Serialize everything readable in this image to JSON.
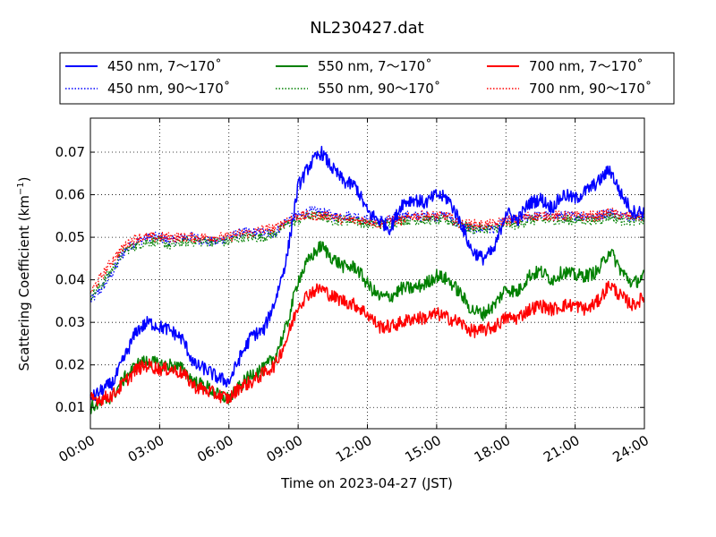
{
  "chart_data": {
    "type": "line",
    "title": "NL230427.dat",
    "xlabel": "Time on 2023-04-27 (JST)",
    "ylabel_main": "Scattering Coefficient (km",
    "ylabel_sup": "−1",
    "ylabel_close": ")",
    "x_unit": "hours",
    "xlim": [
      0,
      24
    ],
    "ylim": [
      0.005,
      0.078
    ],
    "x_ticks": [
      {
        "value": 0,
        "label": "00:00"
      },
      {
        "value": 3,
        "label": "03:00"
      },
      {
        "value": 6,
        "label": "06:00"
      },
      {
        "value": 9,
        "label": "09:00"
      },
      {
        "value": 12,
        "label": "12:00"
      },
      {
        "value": 15,
        "label": "15:00"
      },
      {
        "value": 18,
        "label": "18:00"
      },
      {
        "value": 21,
        "label": "21:00"
      },
      {
        "value": 24,
        "label": "24:00"
      }
    ],
    "y_ticks": [
      {
        "value": 0.01,
        "label": "0.01"
      },
      {
        "value": 0.02,
        "label": "0.02"
      },
      {
        "value": 0.03,
        "label": "0.03"
      },
      {
        "value": 0.04,
        "label": "0.04"
      },
      {
        "value": 0.05,
        "label": "0.05"
      },
      {
        "value": 0.06,
        "label": "0.06"
      },
      {
        "value": 0.07,
        "label": "0.07"
      }
    ],
    "grid": true,
    "legend_placement": "top",
    "series": [
      {
        "name": "450 nm, 7～170˚",
        "color": "#0000ff",
        "style": "solid",
        "x": [
          0,
          0.5,
          1,
          1.5,
          2,
          2.5,
          3,
          3.5,
          4,
          4.5,
          5,
          5.5,
          6,
          6.5,
          7,
          7.5,
          8,
          8.5,
          9,
          9.5,
          10,
          10.5,
          11,
          11.5,
          12,
          12.5,
          13,
          13.5,
          14,
          14.5,
          15,
          15.5,
          16,
          16.5,
          17,
          17.5,
          18,
          18.5,
          19,
          19.5,
          20,
          20.5,
          21,
          21.5,
          22,
          22.5,
          23,
          23.5,
          24
        ],
        "y": [
          0.012,
          0.014,
          0.016,
          0.022,
          0.028,
          0.03,
          0.029,
          0.028,
          0.026,
          0.02,
          0.019,
          0.017,
          0.016,
          0.022,
          0.027,
          0.028,
          0.035,
          0.045,
          0.062,
          0.067,
          0.07,
          0.066,
          0.063,
          0.062,
          0.056,
          0.054,
          0.052,
          0.058,
          0.059,
          0.058,
          0.06,
          0.059,
          0.054,
          0.047,
          0.045,
          0.047,
          0.056,
          0.054,
          0.058,
          0.059,
          0.057,
          0.06,
          0.059,
          0.061,
          0.063,
          0.066,
          0.06,
          0.056,
          0.056
        ]
      },
      {
        "name": "450 nm, 90～170˚",
        "color": "#0000ff",
        "style": "dotted",
        "x": [
          0,
          0.5,
          1,
          1.5,
          2,
          2.5,
          3,
          3.5,
          4,
          4.5,
          5,
          5.5,
          6,
          6.5,
          7,
          7.5,
          8,
          8.5,
          9,
          9.5,
          10,
          10.5,
          11,
          11.5,
          12,
          12.5,
          13,
          13.5,
          14,
          14.5,
          15,
          15.5,
          16,
          16.5,
          17,
          17.5,
          18,
          18.5,
          19,
          19.5,
          20,
          20.5,
          21,
          21.5,
          22,
          22.5,
          23,
          23.5,
          24
        ],
        "y": [
          0.035,
          0.038,
          0.042,
          0.047,
          0.049,
          0.05,
          0.05,
          0.049,
          0.05,
          0.05,
          0.049,
          0.049,
          0.05,
          0.051,
          0.051,
          0.051,
          0.051,
          0.054,
          0.055,
          0.056,
          0.056,
          0.055,
          0.055,
          0.055,
          0.054,
          0.054,
          0.054,
          0.055,
          0.055,
          0.055,
          0.055,
          0.055,
          0.053,
          0.052,
          0.052,
          0.052,
          0.054,
          0.054,
          0.055,
          0.055,
          0.055,
          0.055,
          0.055,
          0.055,
          0.055,
          0.056,
          0.055,
          0.055,
          0.055
        ]
      },
      {
        "name": "550 nm, 7～170˚",
        "color": "#008000",
        "style": "solid",
        "x": [
          0,
          0.5,
          1,
          1.5,
          2,
          2.5,
          3,
          3.5,
          4,
          4.5,
          5,
          5.5,
          6,
          6.5,
          7,
          7.5,
          8,
          8.5,
          9,
          9.5,
          10,
          10.5,
          11,
          11.5,
          12,
          12.5,
          13,
          13.5,
          14,
          14.5,
          15,
          15.5,
          16,
          16.5,
          17,
          17.5,
          18,
          18.5,
          19,
          19.5,
          20,
          20.5,
          21,
          21.5,
          22,
          22.5,
          23,
          23.5,
          24
        ],
        "y": [
          0.01,
          0.011,
          0.013,
          0.017,
          0.02,
          0.021,
          0.02,
          0.02,
          0.019,
          0.016,
          0.015,
          0.013,
          0.012,
          0.015,
          0.018,
          0.019,
          0.022,
          0.029,
          0.04,
          0.045,
          0.048,
          0.045,
          0.043,
          0.043,
          0.039,
          0.036,
          0.036,
          0.038,
          0.038,
          0.039,
          0.041,
          0.04,
          0.037,
          0.033,
          0.032,
          0.034,
          0.038,
          0.037,
          0.041,
          0.042,
          0.04,
          0.042,
          0.041,
          0.041,
          0.042,
          0.047,
          0.042,
          0.039,
          0.041
        ]
      },
      {
        "name": "550 nm, 90～170˚",
        "color": "#008000",
        "style": "dotted",
        "x": [
          0,
          0.5,
          1,
          1.5,
          2,
          2.5,
          3,
          3.5,
          4,
          4.5,
          5,
          5.5,
          6,
          6.5,
          7,
          7.5,
          8,
          8.5,
          9,
          9.5,
          10,
          10.5,
          11,
          11.5,
          12,
          12.5,
          13,
          13.5,
          14,
          14.5,
          15,
          15.5,
          16,
          16.5,
          17,
          17.5,
          18,
          18.5,
          19,
          19.5,
          20,
          20.5,
          21,
          21.5,
          22,
          22.5,
          23,
          23.5,
          24
        ],
        "y": [
          0.036,
          0.039,
          0.043,
          0.047,
          0.048,
          0.049,
          0.049,
          0.048,
          0.049,
          0.049,
          0.049,
          0.049,
          0.049,
          0.05,
          0.05,
          0.05,
          0.051,
          0.053,
          0.054,
          0.055,
          0.055,
          0.054,
          0.054,
          0.054,
          0.053,
          0.053,
          0.053,
          0.054,
          0.054,
          0.054,
          0.054,
          0.054,
          0.053,
          0.052,
          0.052,
          0.052,
          0.053,
          0.053,
          0.054,
          0.054,
          0.054,
          0.054,
          0.054,
          0.054,
          0.054,
          0.055,
          0.054,
          0.054,
          0.054
        ]
      },
      {
        "name": "700 nm, 7～170˚",
        "color": "#ff0000",
        "style": "solid",
        "x": [
          0,
          0.5,
          1,
          1.5,
          2,
          2.5,
          3,
          3.5,
          4,
          4.5,
          5,
          5.5,
          6,
          6.5,
          7,
          7.5,
          8,
          8.5,
          9,
          9.5,
          10,
          10.5,
          11,
          11.5,
          12,
          12.5,
          13,
          13.5,
          14,
          14.5,
          15,
          15.5,
          16,
          16.5,
          17,
          17.5,
          18,
          18.5,
          19,
          19.5,
          20,
          20.5,
          21,
          21.5,
          22,
          22.5,
          23,
          23.5,
          24
        ],
        "y": [
          0.012,
          0.012,
          0.013,
          0.016,
          0.019,
          0.02,
          0.019,
          0.019,
          0.018,
          0.015,
          0.014,
          0.013,
          0.012,
          0.015,
          0.016,
          0.018,
          0.02,
          0.026,
          0.034,
          0.037,
          0.038,
          0.036,
          0.035,
          0.034,
          0.032,
          0.029,
          0.029,
          0.03,
          0.031,
          0.031,
          0.032,
          0.031,
          0.03,
          0.028,
          0.028,
          0.029,
          0.031,
          0.031,
          0.033,
          0.034,
          0.033,
          0.034,
          0.034,
          0.033,
          0.035,
          0.039,
          0.036,
          0.034,
          0.036
        ]
      },
      {
        "name": "700 nm, 90～170˚",
        "color": "#ff0000",
        "style": "dotted",
        "x": [
          0,
          0.5,
          1,
          1.5,
          2,
          2.5,
          3,
          3.5,
          4,
          4.5,
          5,
          5.5,
          6,
          6.5,
          7,
          7.5,
          8,
          8.5,
          9,
          9.5,
          10,
          10.5,
          11,
          11.5,
          12,
          12.5,
          13,
          13.5,
          14,
          14.5,
          15,
          15.5,
          16,
          16.5,
          17,
          17.5,
          18,
          18.5,
          19,
          19.5,
          20,
          20.5,
          21,
          21.5,
          22,
          22.5,
          23,
          23.5,
          24
        ],
        "y": [
          0.037,
          0.041,
          0.045,
          0.048,
          0.05,
          0.05,
          0.05,
          0.05,
          0.05,
          0.05,
          0.05,
          0.05,
          0.05,
          0.051,
          0.051,
          0.052,
          0.052,
          0.054,
          0.055,
          0.055,
          0.055,
          0.055,
          0.054,
          0.054,
          0.054,
          0.053,
          0.054,
          0.054,
          0.055,
          0.055,
          0.055,
          0.055,
          0.053,
          0.053,
          0.053,
          0.053,
          0.054,
          0.054,
          0.055,
          0.055,
          0.055,
          0.055,
          0.055,
          0.055,
          0.055,
          0.056,
          0.055,
          0.055,
          0.055
        ]
      }
    ]
  }
}
